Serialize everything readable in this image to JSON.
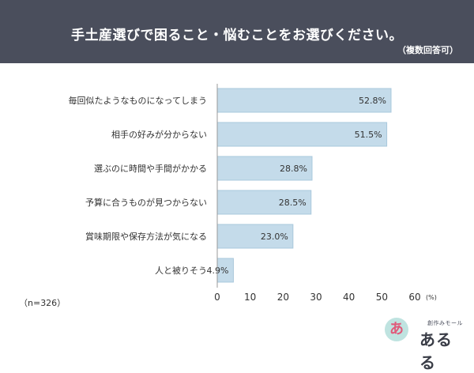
{
  "header": {
    "title": "手土産選びで困ること・悩むことをお選びください。",
    "subtitle": "（複数回答可）"
  },
  "sample_size": "（n=326）",
  "logo": {
    "bubble_char": "あ",
    "brand_line": "創作みモール",
    "name": "あるる"
  },
  "colors": {
    "header_bg": "#4a4e5c",
    "bar": "#c4dbea",
    "bar_stroke": "#a9c8dc"
  },
  "chart_data": {
    "type": "bar",
    "orientation": "horizontal",
    "categories": [
      "毎回似たようなものになってしまう",
      "相手の好みが分からない",
      "選ぶのに時間や手間がかかる",
      "予算に合うものが見つからない",
      "賞味期限や保存方法が気になる",
      "人と被りそう"
    ],
    "values": [
      52.8,
      51.5,
      28.8,
      28.5,
      23.0,
      4.9
    ],
    "value_labels": [
      "52.8%",
      "51.5%",
      "28.8%",
      "28.5%",
      "23.0%",
      "4.9%"
    ],
    "xlim": [
      0,
      60
    ],
    "ticks": [
      "0",
      "10",
      "20",
      "30",
      "40",
      "50",
      "60"
    ],
    "tick_values": [
      0,
      10,
      20,
      30,
      40,
      50,
      60
    ],
    "unit_label": "(%)",
    "grid": false
  }
}
